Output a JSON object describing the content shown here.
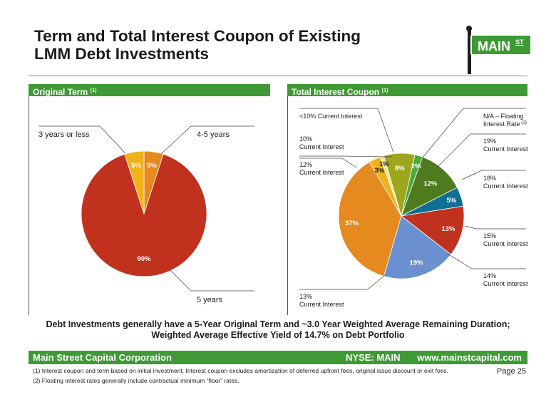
{
  "title": {
    "line1": "Term and Total Interest Coupon of Existing",
    "line2": "LMM Debt Investments"
  },
  "logo": {
    "text": "MAIN",
    "superscript": "ST",
    "colors": {
      "sign": "#3f9a35",
      "post": "#1c1c1c"
    }
  },
  "left_panel": {
    "header": "Original Term",
    "footnote_ref": "(1)"
  },
  "right_panel": {
    "header": "Total Interest Coupon",
    "footnote_ref": "(1)"
  },
  "chart_data": [
    {
      "type": "pie",
      "slices": [
        {
          "label": "4-5 years",
          "value": 5,
          "value_label": "5%",
          "color": "#e58a1f"
        },
        {
          "label": "5 years",
          "value": 90,
          "value_label": "90%",
          "color": "#c0311e"
        },
        {
          "label": "3 years or less",
          "value": 5,
          "value_label": "5%",
          "color": "#f0b21a"
        }
      ]
    },
    {
      "type": "pie",
      "slices": [
        {
          "label": "<10% Current Interest",
          "value": 1,
          "value_label": "1%",
          "color": "#ede7a0"
        },
        {
          "label": "",
          "value": 8,
          "value_label": "8%",
          "color": "#9ea61c"
        },
        {
          "label": "N/A – Floating Interest Rate",
          "label_ref": "(2)",
          "value": 2,
          "value_label": "2%",
          "color": "#4aa83c"
        },
        {
          "label": "19% Current Interest",
          "value": 12,
          "value_label": "12%",
          "color": "#4f7b1f"
        },
        {
          "label": "18% Current Interest",
          "value": 5,
          "value_label": "5%",
          "color": "#0f6e96"
        },
        {
          "label": "15% Current Interest",
          "value": 13,
          "value_label": "13%",
          "color": "#c0311e"
        },
        {
          "label": "14% Current Interest",
          "value": 19,
          "value_label": "19%",
          "color": "#6b8fcf"
        },
        {
          "label": "13% Current Interest",
          "value": 37,
          "value_label": "37%",
          "color": "#e58a1f"
        },
        {
          "label": "12% Current Interest",
          "value": 3,
          "value_label": "3%",
          "color": "#f0b21a"
        },
        {
          "label": "10% Current Interest",
          "value": 0,
          "value_label": "",
          "color": "#f0b21a"
        }
      ]
    }
  ],
  "summary": {
    "line1": "Debt Investments generally have a 5-Year Original Term and ~3.0 Year Weighted Average Remaining Duration;",
    "line2": "Weighted Average Effective Yield of 14.7% on Debt Portfolio"
  },
  "footer": {
    "company": "Main Street Capital Corporation",
    "ticker": "NYSE: MAIN",
    "website": "www.mainstcapital.com"
  },
  "notes": {
    "note1": "(1) Interest coupon and term based on initial investment.  Interest coupon excludes amortization of deferred upfront fees, original issue discount or exit fees.",
    "note2": "(2) Floating interest rates generally include contractual minimum “floor” rates."
  },
  "page": "Page 25"
}
